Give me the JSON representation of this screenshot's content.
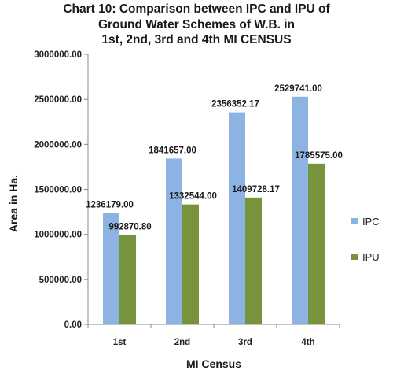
{
  "chart_data": {
    "type": "bar",
    "title_lines": [
      "Chart 10: Comparison between IPC and IPU of",
      "Ground Water Schemes of W.B. in",
      "1st, 2nd, 3rd and 4th MI CENSUS"
    ],
    "xlabel": "MI Census",
    "ylabel": "Area in Ha.",
    "categories": [
      "1st",
      "2nd",
      "3rd",
      "4th"
    ],
    "series": [
      {
        "name": "IPC",
        "color": "#8db3e2",
        "values": [
          1236179.0,
          1841657.0,
          2356352.17,
          2529741.0
        ],
        "labels": [
          "1236179.00",
          "1841657.00",
          "2356352.17",
          "2529741.00"
        ]
      },
      {
        "name": "IPU",
        "color": "#77933c",
        "values": [
          992870.8,
          1332544.0,
          1409728.17,
          1785575.0
        ],
        "labels": [
          "992870.80",
          "1332544.00",
          "1409728.17",
          "1785575.00"
        ]
      }
    ],
    "ylim": [
      0,
      3000000
    ],
    "yticks": [
      0,
      500000,
      1000000,
      1500000,
      2000000,
      2500000,
      3000000
    ],
    "ytick_labels": [
      "0.00",
      "500000.00",
      "1000000.00",
      "1500000.00",
      "2000000.00",
      "2500000.00",
      "3000000.00"
    ],
    "grid": false,
    "legend_position": "right"
  }
}
